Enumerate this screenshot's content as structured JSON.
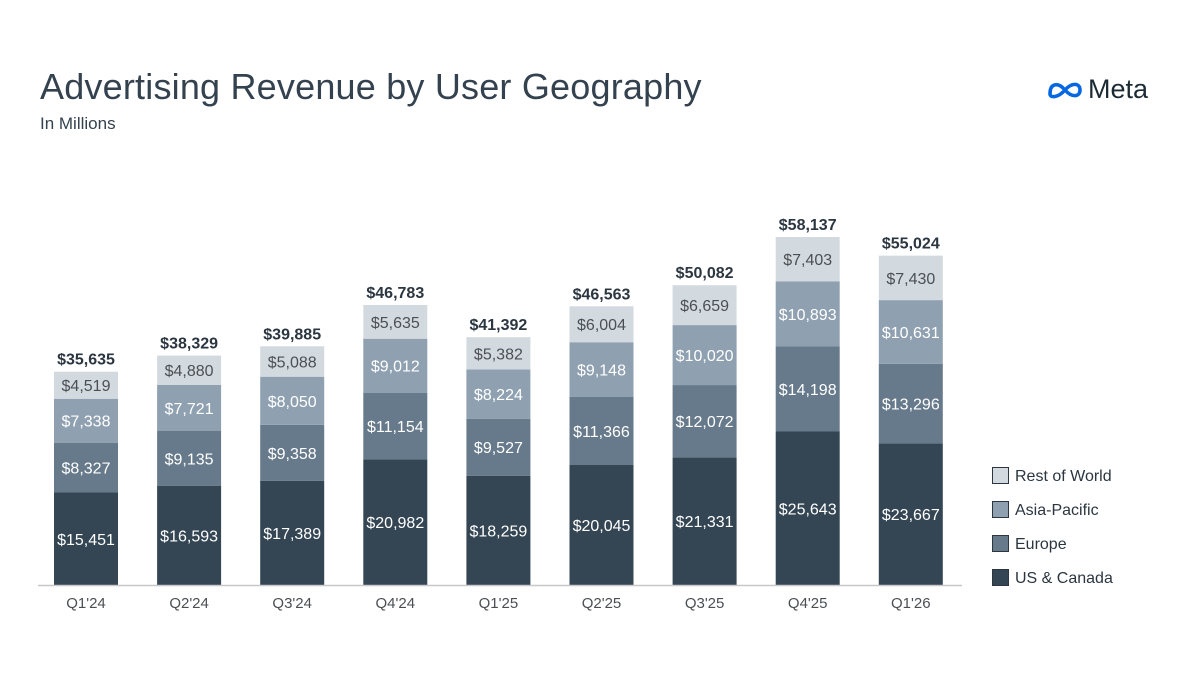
{
  "header": {
    "title": "Advertising Revenue by User Geography",
    "subtitle": "In Millions",
    "logo_text": "Meta",
    "logo_color": "#0668E1"
  },
  "chart_data": {
    "type": "bar",
    "stacked": true,
    "title": "Advertising Revenue by User Geography",
    "subtitle": "In Millions",
    "categories": [
      "Q1'24",
      "Q2'24",
      "Q3'24",
      "Q4'24",
      "Q1'25",
      "Q2'25",
      "Q3'25",
      "Q4'25",
      "Q1'26"
    ],
    "series": [
      {
        "name": "US & Canada",
        "color": "#344654",
        "label_color": "#ffffff",
        "values": [
          15451,
          16593,
          17389,
          20982,
          18259,
          20045,
          21331,
          25643,
          23667
        ],
        "labels": [
          "$15,451",
          "$16,593",
          "$17,389",
          "$20,982",
          "$18,259",
          "$20,045",
          "$21,331",
          "$25,643",
          "$23,667"
        ]
      },
      {
        "name": "Europe",
        "color": "#677a8b",
        "label_color": "#ffffff",
        "values": [
          8327,
          9135,
          9358,
          11154,
          9527,
          11366,
          12072,
          14198,
          13296
        ],
        "labels": [
          "$8,327",
          "$9,135",
          "$9,358",
          "$11,154",
          "$9,527",
          "$11,366",
          "$12,072",
          "$14,198",
          "$13,296"
        ]
      },
      {
        "name": "Asia-Pacific",
        "color": "#8fa1b1",
        "label_color": "#ffffff",
        "values": [
          7338,
          7721,
          8050,
          9012,
          8224,
          9148,
          10020,
          10893,
          10631
        ],
        "labels": [
          "$7,338",
          "$7,721",
          "$8,050",
          "$9,012",
          "$8,224",
          "$9,148",
          "$10,020",
          "$10,893",
          "$10,631"
        ]
      },
      {
        "name": "Rest of World",
        "color": "#d3dadf",
        "label_color": "#4b4f53",
        "values": [
          4519,
          4880,
          5088,
          5635,
          5382,
          6004,
          6659,
          7403,
          7430
        ],
        "labels": [
          "$4,519",
          "$4,880",
          "$5,088",
          "$5,635",
          "$5,382",
          "$6,004",
          "$6,659",
          "$7,403",
          "$7,430"
        ]
      }
    ],
    "totals": [
      35635,
      38329,
      39885,
      46783,
      41392,
      46563,
      50082,
      58137,
      55024
    ],
    "total_labels": [
      "$35,635",
      "$38,329",
      "$39,885",
      "$46,783",
      "$41,392",
      "$46,563",
      "$50,082",
      "$58,137",
      "$55,024"
    ],
    "legend_order": [
      "Rest of World",
      "Asia-Pacific",
      "Europe",
      "US & Canada"
    ],
    "legend_position": "right",
    "grid": false,
    "xlabel": "",
    "ylabel": ""
  }
}
